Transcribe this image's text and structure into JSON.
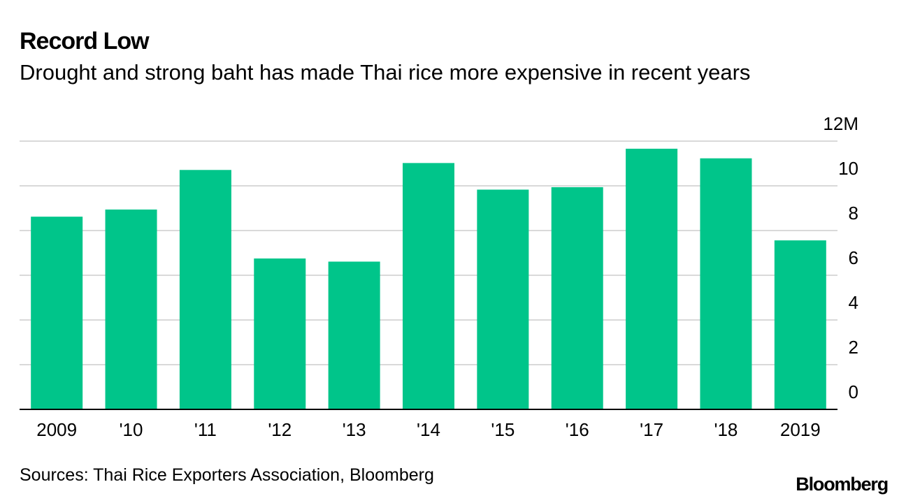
{
  "header": {
    "title": "Record Low",
    "subtitle": "Drought and strong baht has made Thai rice more expensive in recent years"
  },
  "chart_data": {
    "type": "bar",
    "categories": [
      "2009",
      "'10",
      "'11",
      "'12",
      "'13",
      "'14",
      "'15",
      "'16",
      "'17",
      "'18",
      "2019"
    ],
    "values": [
      8.62,
      8.94,
      10.71,
      6.75,
      6.61,
      11.02,
      9.83,
      9.94,
      11.66,
      11.23,
      7.56
    ],
    "y_ticks": [
      "0",
      "2",
      "4",
      "6",
      "8",
      "10",
      "12M"
    ],
    "ylim": [
      0,
      12
    ],
    "grid": true,
    "bar_color": "#00c58a",
    "grid_color": "#d9d9d9",
    "axis_color": "#000000"
  },
  "footer": {
    "source": "Sources: Thai Rice Exporters Association, Bloomberg",
    "logo": "Bloomberg"
  }
}
